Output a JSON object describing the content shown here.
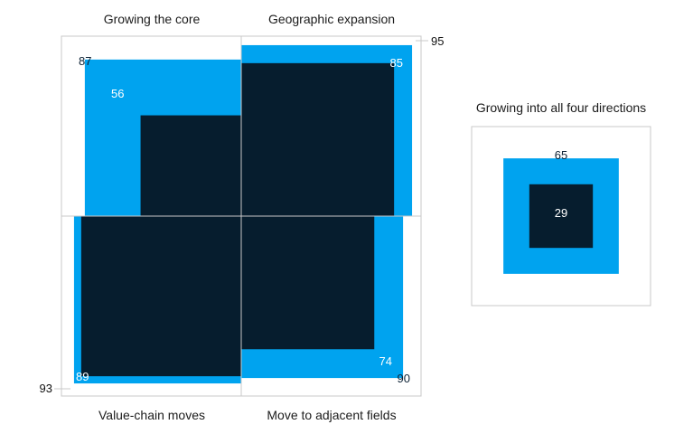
{
  "chart_data": [
    {
      "type": "quadrant-squares",
      "colors": {
        "outer": "#00a3ef",
        "inner": "#061d2e",
        "frame": "#c8c8c8"
      },
      "quadrants": [
        {
          "label": "Growing the core",
          "position": "top-left",
          "outer_value": 87,
          "inner_value": 56
        },
        {
          "label": "Geographic expansion",
          "position": "top-right",
          "outer_value": 95,
          "inner_value": 85
        },
        {
          "label": "Value-chain moves",
          "position": "bottom-left",
          "outer_value": 93,
          "inner_value": 89
        },
        {
          "label": "Move to adjacent fields",
          "position": "bottom-right",
          "outer_value": 90,
          "inner_value": 74
        }
      ]
    },
    {
      "type": "nested-squares",
      "title": "Growing into all four directions",
      "outer_value": 65,
      "inner_value": 29,
      "colors": {
        "outer": "#00a3ef",
        "inner": "#061d2e",
        "frame": "#c8c8c8"
      }
    }
  ]
}
